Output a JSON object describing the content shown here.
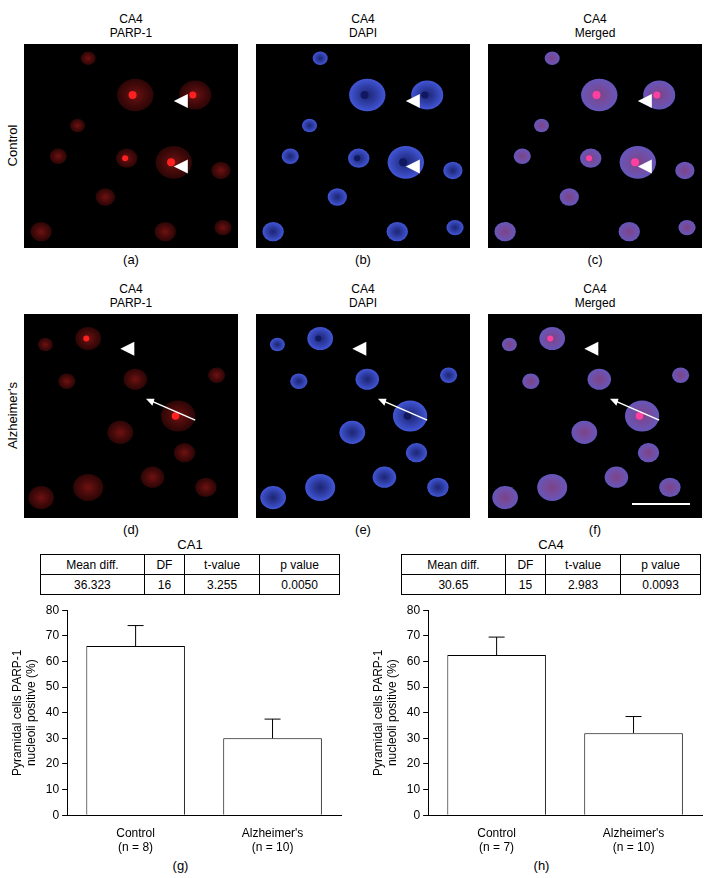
{
  "image_panels": [
    {
      "label": "(a)",
      "title": [
        "CA4",
        "PARP-1"
      ],
      "row_label": "Control"
    },
    {
      "label": "(b)",
      "title": [
        "CA4",
        "DAPI"
      ]
    },
    {
      "label": "(c)",
      "title": [
        "CA4",
        "Merged"
      ]
    },
    {
      "label": "(d)",
      "title": [
        "CA4",
        "PARP-1"
      ],
      "row_label": "Alzheimer's"
    },
    {
      "label": "(e)",
      "title": [
        "CA4",
        "DAPI"
      ]
    },
    {
      "label": "(f)",
      "title": [
        "CA4",
        "Merged"
      ]
    }
  ],
  "chart_data": [
    {
      "type": "bar",
      "title": "CA1",
      "panel_label": "(g)",
      "table": {
        "columns": [
          "Mean diff.",
          "DF",
          "t-value",
          "p value"
        ],
        "rows": [
          [
            "36.323",
            "16",
            "3.255",
            "0.0050"
          ]
        ]
      },
      "categories": [
        "Control\n(n = 8)",
        "Alzheimer's\n(n = 10)"
      ],
      "values": [
        66,
        30
      ],
      "errors": [
        8,
        7.5
      ],
      "color": "#ffffff",
      "y_label": "Pyramidal cells PARP-1\nnucleoli positive (%)",
      "ylim": [
        0,
        80
      ],
      "yticks": [
        0,
        10,
        20,
        30,
        40,
        50,
        60,
        70,
        80
      ],
      "grid": false
    },
    {
      "type": "bar",
      "title": "CA4",
      "panel_label": "(h)",
      "table": {
        "columns": [
          "Mean diff.",
          "DF",
          "t-value",
          "p value"
        ],
        "rows": [
          [
            "30.65",
            "15",
            "2.983",
            "0.0093"
          ]
        ]
      },
      "categories": [
        "Control\n(n = 7)",
        "Alzheimer's\n(n = 10)"
      ],
      "values": [
        62.5,
        32
      ],
      "errors": [
        7,
        6.5
      ],
      "color": "#ffffff",
      "y_label": "Pyramidal cells PARP-1\nnucleoli positive (%)",
      "ylim": [
        0,
        80
      ],
      "yticks": [
        0,
        10,
        20,
        30,
        40,
        50,
        60,
        70,
        80
      ],
      "grid": false
    }
  ]
}
